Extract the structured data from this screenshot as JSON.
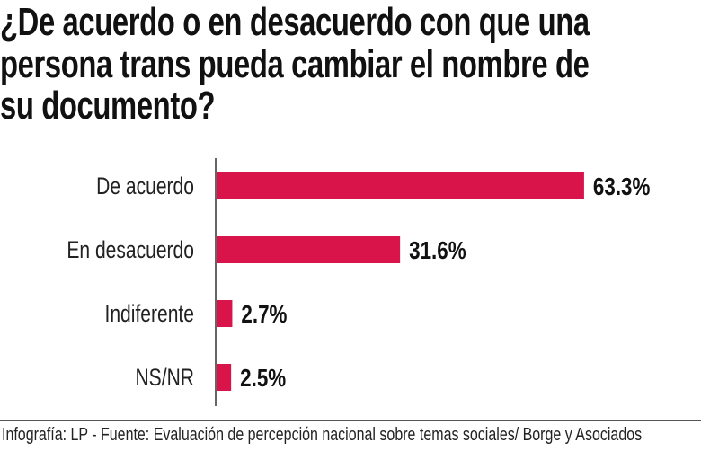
{
  "title_lines": [
    "¿De acuerdo o en desacuerdo con que una",
    "persona trans pueda cambiar el nombre de",
    "su documento?"
  ],
  "chart_data": {
    "type": "bar",
    "orientation": "horizontal",
    "title": "¿De acuerdo o en desacuerdo con que una persona trans pueda cambiar el nombre de su documento?",
    "categories": [
      "De acuerdo",
      "En desacuerdo",
      "Indiferente",
      "NS/NR"
    ],
    "values": [
      63.3,
      31.6,
      2.7,
      2.5
    ],
    "value_labels": [
      "63.3%",
      "31.6%",
      "2.7%",
      "2.5%"
    ],
    "xlabel": "",
    "ylabel": "",
    "xlim": [
      0,
      100
    ],
    "grid": false,
    "bar_color": "#d8144b"
  },
  "footer": "Infografía: LP - Fuente: Evaluación de percepción nacional sobre temas sociales/ Borge y Asociados"
}
